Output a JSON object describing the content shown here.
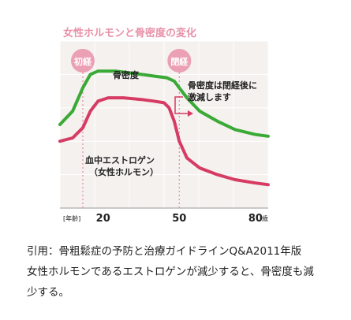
{
  "chart_data": {
    "type": "line",
    "title": "女性ホルモンと骨密度の変化",
    "x_unit_left": "[年齢]",
    "x_unit_right": "歳",
    "x_ticks": [
      20,
      50,
      80
    ],
    "xlim": [
      3,
      85
    ],
    "ylim": [
      0,
      100
    ],
    "grid": true,
    "markers": [
      {
        "label": "初経",
        "x": 12
      },
      {
        "label": "閉経",
        "x": 50
      }
    ],
    "series": [
      {
        "name": "骨密度",
        "color": "#3aa935",
        "x": [
          3,
          8,
          12,
          15,
          18,
          25,
          35,
          45,
          48,
          50,
          53,
          58,
          65,
          72,
          80,
          85
        ],
        "y": [
          50,
          58,
          72,
          80,
          82,
          82,
          80,
          78,
          76,
          72,
          66,
          58,
          52,
          47,
          44,
          43
        ]
      },
      {
        "name": "血中エストロゲン\n（女性ホルモン）",
        "color": "#d63c63",
        "x": [
          3,
          8,
          12,
          15,
          18,
          22,
          28,
          35,
          40,
          44,
          46,
          48,
          50,
          53,
          58,
          65,
          72,
          80,
          85
        ],
        "y": [
          40,
          42,
          48,
          58,
          64,
          66,
          66,
          65,
          64,
          63,
          60,
          52,
          40,
          30,
          24,
          20,
          17,
          15,
          14
        ]
      }
    ],
    "annotation": "骨密度は閉経後に\n激減します"
  },
  "caption": {
    "line1": "引用：骨粗鬆症の予防と治療ガイドラインQ&A2011年版",
    "line2": "女性ホルモンであるエストロゲンが減少すると、骨密度も減",
    "line3": "少する。"
  }
}
